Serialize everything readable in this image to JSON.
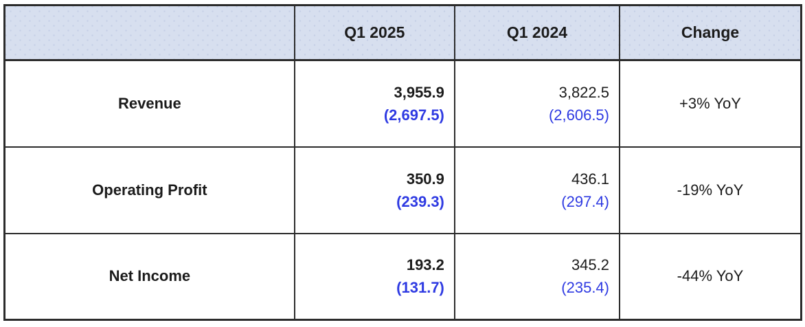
{
  "colors": {
    "header_bg": "#d7dfef",
    "header_dot": "#c5cfe6",
    "border": "#2b2b2b",
    "text": "#1b1b1b",
    "accent_blue": "#2e3ae2"
  },
  "chart_data": {
    "type": "table",
    "columns": [
      "",
      "Q1 2025",
      "Q1 2024",
      "Change"
    ],
    "rows": [
      {
        "label": "Revenue",
        "q1_2025_main": "3,955.9",
        "q1_2025_sub": "(2,697.5)",
        "q1_2024_main": "3,822.5",
        "q1_2024_sub": "(2,606.5)",
        "change": "+3% YoY"
      },
      {
        "label": "Operating Profit",
        "q1_2025_main": "350.9",
        "q1_2025_sub": "(239.3)",
        "q1_2024_main": "436.1",
        "q1_2024_sub": "(297.4)",
        "change": "-19% YoY"
      },
      {
        "label": "Net Income",
        "q1_2025_main": "193.2",
        "q1_2025_sub": "(131.7)",
        "q1_2024_main": "345.2",
        "q1_2024_sub": "(235.4)",
        "change": "-44% YoY"
      }
    ]
  }
}
